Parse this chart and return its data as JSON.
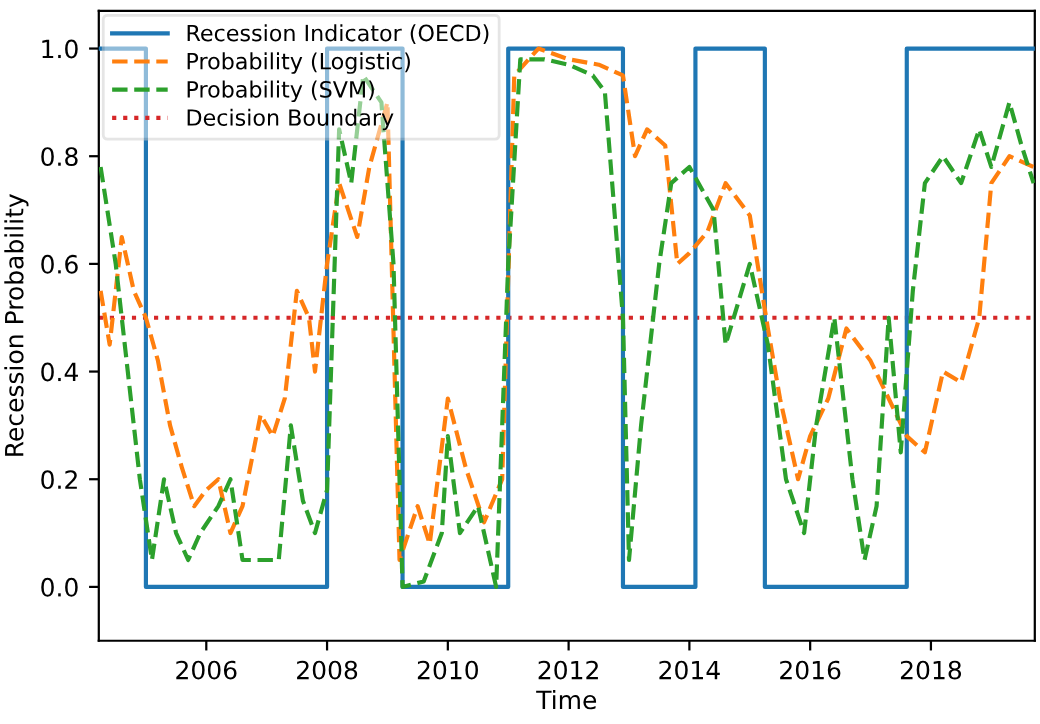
{
  "chart_data": {
    "type": "line",
    "xlabel": "Time",
    "ylabel": "Recession Probability",
    "xlim": [
      2004.22,
      2019.72
    ],
    "xticks": [
      2006,
      2008,
      2010,
      2012,
      2014,
      2016,
      2018
    ],
    "ylim": [
      -0.1,
      1.07
    ],
    "yticks": [
      {
        "value": 0,
        "label": "0.0"
      },
      {
        "value": 0.2,
        "label": "0.2"
      },
      {
        "value": 0.4,
        "label": "0.4"
      },
      {
        "value": 0.6,
        "label": "0.6"
      },
      {
        "value": 0.8,
        "label": "0.8"
      },
      {
        "value": 1,
        "label": "1.0"
      }
    ],
    "legend": "top left",
    "grid": false,
    "series": [
      {
        "name": "Recession Indicator (OECD)",
        "type": "step",
        "line_style": "solid",
        "color": "#1f77b4",
        "x": [
          2004.22,
          2005.0,
          2008.0,
          2009.25,
          2011.0,
          2012.9,
          2014.1,
          2015.25,
          2017.6,
          2019.72
        ],
        "values": [
          1,
          0,
          1,
          0,
          1,
          0,
          1,
          0,
          1,
          1
        ]
      },
      {
        "name": "Probability (Logistic)",
        "line_style": "dashed",
        "color": "#ff7f0e",
        "x": [
          2004.25,
          2004.4,
          2004.6,
          2004.8,
          2005.0,
          2005.2,
          2005.4,
          2005.6,
          2005.8,
          2006.0,
          2006.2,
          2006.4,
          2006.6,
          2006.9,
          2007.1,
          2007.3,
          2007.5,
          2007.7,
          2007.8,
          2008.0,
          2008.2,
          2008.5,
          2008.7,
          2009.0,
          2009.2,
          2009.5,
          2009.7,
          2010.0,
          2010.3,
          2010.6,
          2010.9,
          2011.1,
          2011.5,
          2012.0,
          2012.5,
          2012.9,
          2013.1,
          2013.3,
          2013.6,
          2013.8,
          2014.0,
          2014.3,
          2014.6,
          2015.0,
          2015.3,
          2015.5,
          2015.8,
          2016.0,
          2016.3,
          2016.6,
          2017.0,
          2017.3,
          2017.6,
          2017.9,
          2018.2,
          2018.5,
          2018.8,
          2019.0,
          2019.3,
          2019.7
        ],
        "values": [
          0.55,
          0.45,
          0.65,
          0.55,
          0.5,
          0.42,
          0.3,
          0.22,
          0.15,
          0.18,
          0.2,
          0.1,
          0.15,
          0.32,
          0.28,
          0.35,
          0.55,
          0.5,
          0.4,
          0.6,
          0.75,
          0.65,
          0.78,
          0.9,
          0.05,
          0.15,
          0.08,
          0.35,
          0.22,
          0.12,
          0.2,
          0.95,
          1.0,
          0.98,
          0.97,
          0.95,
          0.8,
          0.85,
          0.82,
          0.6,
          0.62,
          0.66,
          0.75,
          0.69,
          0.48,
          0.35,
          0.2,
          0.28,
          0.35,
          0.48,
          0.42,
          0.35,
          0.28,
          0.25,
          0.4,
          0.38,
          0.5,
          0.75,
          0.8,
          0.78
        ]
      },
      {
        "name": "Probability (SVM)",
        "line_style": "dashed",
        "color": "#2ca02c",
        "x": [
          2004.25,
          2004.5,
          2004.7,
          2004.9,
          2005.1,
          2005.3,
          2005.5,
          2005.7,
          2005.9,
          2006.2,
          2006.4,
          2006.6,
          2006.9,
          2007.2,
          2007.4,
          2007.6,
          2007.8,
          2008.0,
          2008.2,
          2008.4,
          2008.6,
          2008.9,
          2009.1,
          2009.25,
          2009.6,
          2009.9,
          2010.0,
          2010.2,
          2010.5,
          2010.8,
          2011.0,
          2011.2,
          2011.6,
          2012.0,
          2012.4,
          2012.6,
          2012.9,
          2013.0,
          2013.2,
          2013.5,
          2013.7,
          2014.0,
          2014.4,
          2014.6,
          2015.0,
          2015.3,
          2015.6,
          2015.9,
          2016.1,
          2016.4,
          2016.7,
          2016.9,
          2017.1,
          2017.3,
          2017.5,
          2017.7,
          2017.9,
          2018.2,
          2018.5,
          2018.8,
          2019.0,
          2019.3,
          2019.5,
          2019.7
        ],
        "values": [
          0.78,
          0.6,
          0.4,
          0.2,
          0.05,
          0.2,
          0.1,
          0.05,
          0.1,
          0.15,
          0.2,
          0.05,
          0.05,
          0.05,
          0.3,
          0.16,
          0.1,
          0.18,
          0.85,
          0.75,
          0.95,
          0.9,
          0.6,
          0.0,
          0.01,
          0.1,
          0.28,
          0.1,
          0.15,
          0.0,
          0.6,
          0.98,
          0.98,
          0.97,
          0.95,
          0.92,
          0.5,
          0.05,
          0.3,
          0.6,
          0.75,
          0.78,
          0.7,
          0.45,
          0.6,
          0.45,
          0.2,
          0.1,
          0.3,
          0.5,
          0.2,
          0.05,
          0.15,
          0.5,
          0.25,
          0.55,
          0.75,
          0.8,
          0.75,
          0.85,
          0.78,
          0.9,
          0.82,
          0.75
        ]
      }
    ],
    "ref_lines": [
      {
        "axis": "y",
        "value": 0.5,
        "label": "Decision Boundary",
        "color": "#d62728",
        "line_style": "dotted"
      }
    ]
  }
}
